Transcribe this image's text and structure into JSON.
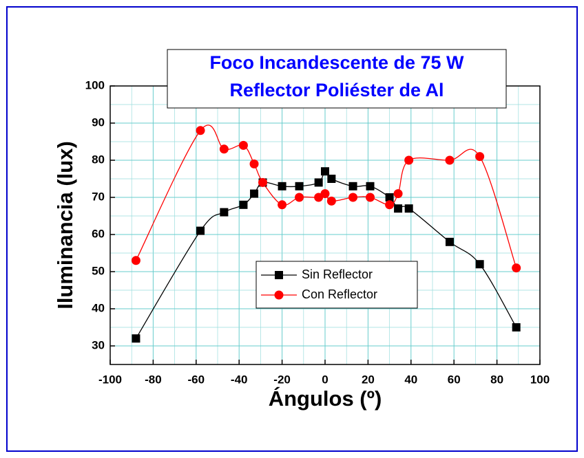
{
  "chart_data": {
    "type": "line",
    "title": [
      "Foco Incandescente de 75 W",
      "Reflector Poliéster de Al"
    ],
    "x_label": "Ángulos (º)",
    "y_label": "Iluminancia (lux)",
    "x": [
      -88,
      -58,
      -47,
      -38,
      -33,
      -29,
      -20,
      -12,
      -3,
      0,
      3,
      13,
      21,
      30,
      34,
      39,
      58,
      72,
      89
    ],
    "series": [
      {
        "name": "Sin Reflector",
        "color": "#000000",
        "marker": "square",
        "values": [
          32,
          61,
          66,
          68,
          71,
          74,
          73,
          73,
          74,
          77,
          75,
          73,
          73,
          70,
          67,
          67,
          58,
          52,
          35
        ]
      },
      {
        "name": "Con Reflector",
        "color": "#ff0000",
        "marker": "circle",
        "values": [
          53,
          88,
          83,
          84,
          79,
          74,
          68,
          70,
          70,
          71,
          69,
          70,
          70,
          68,
          71,
          80,
          80,
          81,
          51
        ]
      }
    ],
    "xlim": [
      -100,
      100
    ],
    "xticks": [
      -100,
      -80,
      -60,
      -40,
      -20,
      0,
      20,
      40,
      60,
      80,
      100
    ],
    "ylim": [
      25,
      100
    ],
    "yticks": [
      30,
      40,
      50,
      60,
      70,
      80,
      90,
      100
    ],
    "grid": true,
    "smooth": true
  }
}
